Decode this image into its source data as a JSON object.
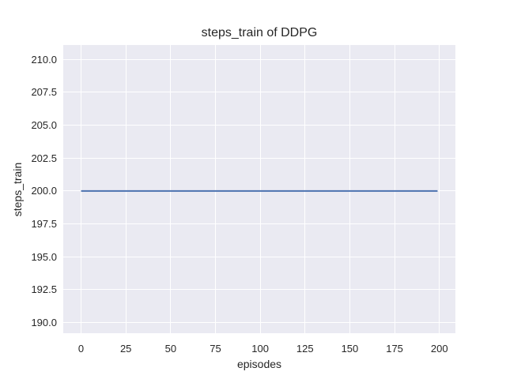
{
  "colors": {
    "figure_background": "#ffffff",
    "plot_background": "#eaeaf2",
    "grid": "#ffffff",
    "text": "#262626",
    "line": "#4c72b0"
  },
  "chart_data": {
    "type": "line",
    "title": "steps_train of DDPG",
    "xlabel": "episodes",
    "ylabel": "steps_train",
    "x_tick_values": [
      0,
      25,
      50,
      75,
      100,
      125,
      150,
      175,
      200
    ],
    "x_tick_labels": [
      "0",
      "25",
      "50",
      "75",
      "100",
      "125",
      "150",
      "175",
      "200"
    ],
    "y_tick_values": [
      210.0,
      207.5,
      205.0,
      202.5,
      200.0,
      197.5,
      195.0,
      192.5,
      190.0
    ],
    "y_tick_labels": [
      "210.0",
      "207.5",
      "205.0",
      "202.5",
      "200.0",
      "197.5",
      "195.0",
      "192.5",
      "190.0"
    ],
    "xlim": [
      -9.95,
      208.95
    ],
    "ylim": [
      189.2,
      211.08
    ],
    "grid": true,
    "legend_position": "none",
    "series": [
      {
        "name": "steps_train",
        "color": "#4c72b0",
        "x": [
          0,
          199
        ],
        "y": [
          200,
          200
        ]
      }
    ]
  }
}
